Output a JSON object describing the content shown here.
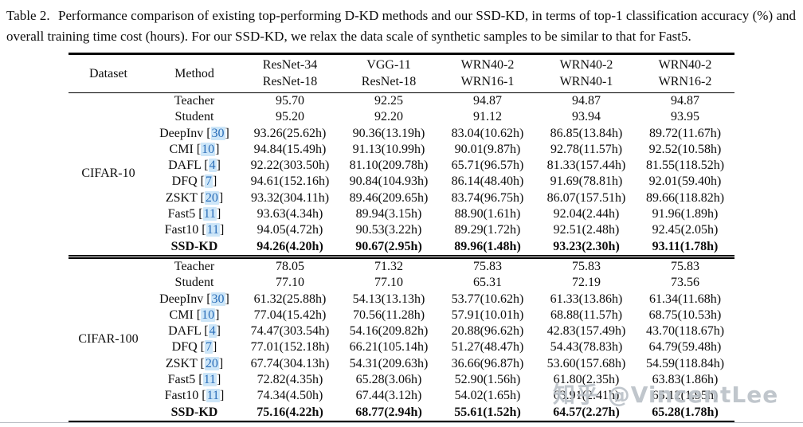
{
  "caption": {
    "label": "Table 2.",
    "text": "Performance comparison of existing top-performing D-KD methods and our SSD-KD, in terms of top-1 classification accuracy (%) and overall training time cost (hours). For our SSD-KD, we relax the data scale of synthetic samples to be similar to that for Fast5."
  },
  "punct": {
    "open_bracket": " [",
    "close_bracket": "]"
  },
  "table": {
    "headers": {
      "dataset": "Dataset",
      "method": "Method",
      "pairs": [
        {
          "teacher": "ResNet-34",
          "student": "ResNet-18"
        },
        {
          "teacher": "VGG-11",
          "student": "ResNet-18"
        },
        {
          "teacher": "WRN40-2",
          "student": "WRN16-1"
        },
        {
          "teacher": "WRN40-2",
          "student": "WRN40-1"
        },
        {
          "teacher": "WRN40-2",
          "student": "WRN16-2"
        }
      ]
    },
    "sections": [
      {
        "dataset": "CIFAR-10",
        "rows": [
          {
            "method": "Teacher",
            "cite": "",
            "bold": false,
            "values": [
              "95.70",
              "92.25",
              "94.87",
              "94.87",
              "94.87"
            ]
          },
          {
            "method": "Student",
            "cite": "",
            "bold": false,
            "values": [
              "95.20",
              "92.20",
              "91.12",
              "93.94",
              "93.95"
            ]
          },
          {
            "method": "DeepInv",
            "cite": "30",
            "bold": false,
            "values": [
              "93.26(25.62h)",
              "90.36(13.19h)",
              "83.04(10.62h)",
              "86.85(13.84h)",
              "89.72(11.67h)"
            ]
          },
          {
            "method": "CMI",
            "cite": "10",
            "bold": false,
            "values": [
              "94.84(15.49h)",
              "91.13(10.99h)",
              "90.01(9.87h)",
              "92.78(11.57h)",
              "92.52(10.58h)"
            ]
          },
          {
            "method": "DAFL",
            "cite": "4",
            "bold": false,
            "values": [
              "92.22(303.50h)",
              "81.10(209.78h)",
              "65.71(96.57h)",
              "81.33(157.44h)",
              "81.55(118.52h)"
            ]
          },
          {
            "method": "DFQ",
            "cite": "7",
            "bold": false,
            "values": [
              "94.61(152.16h)",
              "90.84(104.93h)",
              "86.14(48.40h)",
              "91.69(78.81h)",
              "92.01(59.40h)"
            ]
          },
          {
            "method": "ZSKT",
            "cite": "20",
            "bold": false,
            "values": [
              "93.32(304.11h)",
              "89.46(209.65h)",
              "83.74(96.75h)",
              "86.07(157.51h)",
              "89.66(118.82h)"
            ]
          },
          {
            "method": "Fast5",
            "cite": "11",
            "bold": false,
            "values": [
              "93.63(4.34h)",
              "89.94(3.15h)",
              "88.90(1.61h)",
              "92.04(2.44h)",
              "91.96(1.89h)"
            ]
          },
          {
            "method": "Fast10",
            "cite": "11",
            "bold": false,
            "values": [
              "94.05(4.72h)",
              "90.53(3.22h)",
              "89.29(1.72h)",
              "92.51(2.48h)",
              "92.45(2.05h)"
            ]
          },
          {
            "method": "SSD-KD",
            "cite": "",
            "bold": true,
            "values": [
              "94.26(4.20h)",
              "90.67(2.95h)",
              "89.96(1.48h)",
              "93.23(2.30h)",
              "93.11(1.78h)"
            ]
          }
        ]
      },
      {
        "dataset": "CIFAR-100",
        "rows": [
          {
            "method": "Teacher",
            "cite": "",
            "bold": false,
            "values": [
              "78.05",
              "71.32",
              "75.83",
              "75.83",
              "75.83"
            ]
          },
          {
            "method": "Student",
            "cite": "",
            "bold": false,
            "values": [
              "77.10",
              "77.10",
              "65.31",
              "72.19",
              "73.56"
            ]
          },
          {
            "method": "DeepInv",
            "cite": "30",
            "bold": false,
            "values": [
              "61.32(25.88h)",
              "54.13(13.13h)",
              "53.77(10.62h)",
              "61.33(13.86h)",
              "61.34(11.68h)"
            ]
          },
          {
            "method": "CMI",
            "cite": "10",
            "bold": false,
            "values": [
              "77.04(15.42h)",
              "70.56(11.28h)",
              "57.91(10.01h)",
              "68.88(11.57h)",
              "68.75(10.53h)"
            ]
          },
          {
            "method": "DAFL",
            "cite": "4",
            "bold": false,
            "values": [
              "74.47(303.54h)",
              "54.16(209.82h)",
              "20.88(96.62h)",
              "42.83(157.49h)",
              "43.70(118.67h)"
            ]
          },
          {
            "method": "DFQ",
            "cite": "7",
            "bold": false,
            "values": [
              "77.01(152.18h)",
              "66.21(105.14h)",
              "51.27(48.47h)",
              "54.43(78.83h)",
              "64.79(59.48h)"
            ]
          },
          {
            "method": "ZSKT",
            "cite": "20",
            "bold": false,
            "values": [
              "67.74(304.13h)",
              "54.31(209.63h)",
              "36.66(96.87h)",
              "53.60(157.68h)",
              "54.59(118.84h)"
            ]
          },
          {
            "method": "Fast5",
            "cite": "11",
            "bold": false,
            "values": [
              "72.82(4.35h)",
              "65.28(3.06h)",
              "52.90(1.56h)",
              "61.80(2.35h)",
              "63.83(1.86h)"
            ]
          },
          {
            "method": "Fast10",
            "cite": "11",
            "bold": false,
            "values": [
              "74.34(4.50h)",
              "67.44(3.12h)",
              "54.02(1.65h)",
              "63.91(2.41h)",
              "65.12(1.95h)"
            ]
          },
          {
            "method": "SSD-KD",
            "cite": "",
            "bold": true,
            "values": [
              "75.16(4.22h)",
              "68.77(2.94h)",
              "55.61(1.52h)",
              "64.57(2.27h)",
              "65.28(1.78h)"
            ]
          }
        ]
      }
    ]
  },
  "watermark": {
    "text": "知乎 @VincentLee"
  },
  "colors": {
    "citation_text": "#2a6db8",
    "citation_highlight": "#cde6f8",
    "watermark_gray": "#b9c0c7",
    "rule_black": "#000000"
  }
}
